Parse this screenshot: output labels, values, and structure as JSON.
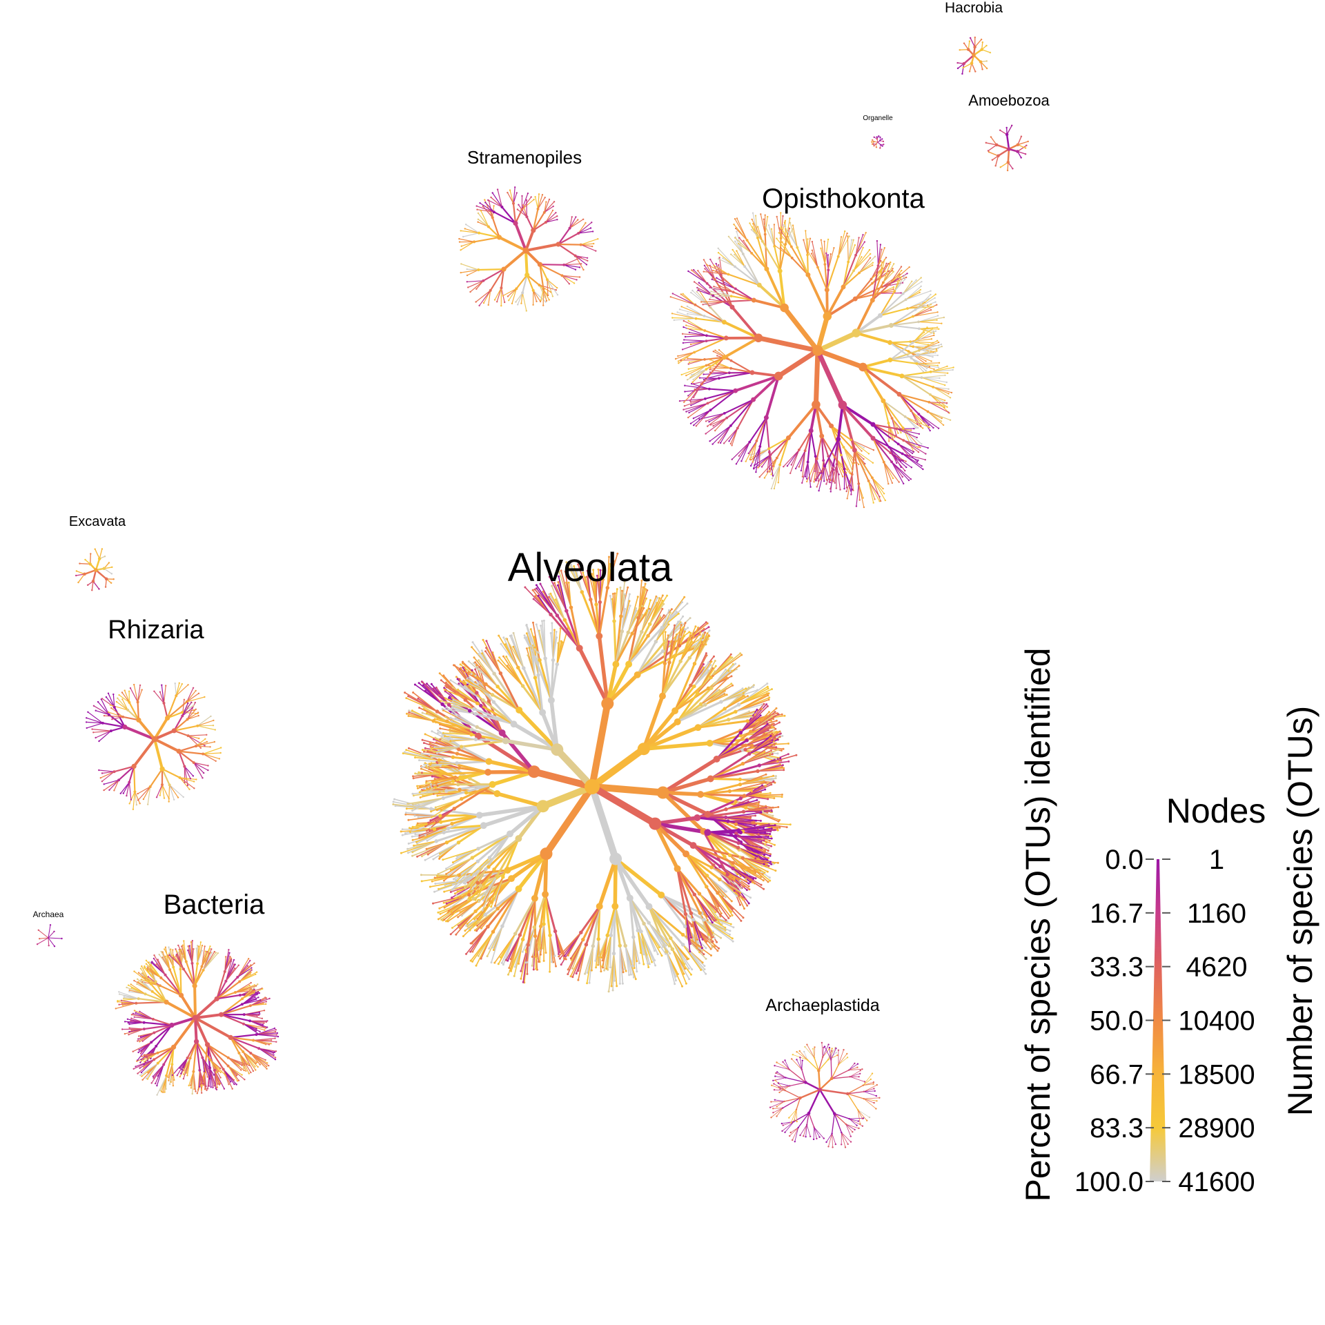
{
  "trees": [
    {
      "label": "Alveolata",
      "root_otus": 41600,
      "root_percent": 66.7
    },
    {
      "label": "Opisthokonta",
      "root_otus": 18500,
      "root_percent": 55.0
    },
    {
      "label": "Stramenopiles",
      "root_otus": 4620,
      "root_percent": 50.0
    },
    {
      "label": "Rhizaria",
      "root_otus": 4620,
      "root_percent": 45.0
    },
    {
      "label": "Bacteria",
      "root_otus": 4620,
      "root_percent": 30.0
    },
    {
      "label": "Archaeplastida",
      "root_otus": 1160,
      "root_percent": 20.0
    },
    {
      "label": "Excavata",
      "root_otus": 1160,
      "root_percent": 60.0
    },
    {
      "label": "Hacrobia",
      "root_otus": 1160,
      "root_percent": 55.0
    },
    {
      "label": "Amoebozoa",
      "root_otus": 1160,
      "root_percent": 15.0
    },
    {
      "label": "Organelle",
      "root_otus": 1,
      "root_percent": 20.0
    },
    {
      "label": "Archaea",
      "root_otus": 1,
      "root_percent": 5.0
    }
  ],
  "legend": {
    "title": "Nodes",
    "color_axis_title": "Percent of species (OTUs) identified",
    "size_axis_title": "Number of species (OTUs)",
    "color_ticks": [
      "0.0",
      "16.7",
      "33.3",
      "50.0",
      "66.7",
      "83.3",
      "100.0"
    ],
    "size_ticks": [
      "1",
      "1160",
      "4620",
      "10400",
      "18500",
      "28900",
      "41600"
    ],
    "gradient_colors": [
      "#9b15a6",
      "#c83c8a",
      "#e0635e",
      "#f08a44",
      "#f7b43a",
      "#f6c93a",
      "#cfcfcf"
    ]
  }
}
